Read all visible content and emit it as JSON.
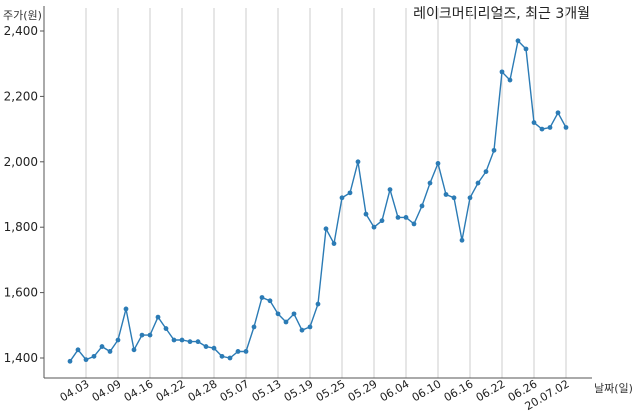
{
  "chart_data": {
    "type": "line",
    "title": "레이크머티리얼즈, 최근 3개월",
    "ylabel": "주가(원)",
    "xlabel": "날짜(일)",
    "ylim": [
      1350,
      2430
    ],
    "yticks": [
      1400,
      1600,
      1800,
      2000,
      2200,
      2400
    ],
    "ytick_labels": [
      "1,400",
      "1,600",
      "1,800",
      "2,000",
      "2,200",
      "2,400"
    ],
    "grid": "vertical",
    "colors": {
      "line": "#2b7bb5",
      "grid": "#cccccc",
      "axis": "#555555"
    },
    "x_labels": [
      {
        "label": "04.03",
        "index": 2
      },
      {
        "label": "04.09",
        "index": 6
      },
      {
        "label": "04.16",
        "index": 10
      },
      {
        "label": "04.22",
        "index": 14
      },
      {
        "label": "04.28",
        "index": 18
      },
      {
        "label": "05.07",
        "index": 22
      },
      {
        "label": "05.13",
        "index": 26
      },
      {
        "label": "05.19",
        "index": 30
      },
      {
        "label": "05.25",
        "index": 34
      },
      {
        "label": "05.29",
        "index": 38
      },
      {
        "label": "06.04",
        "index": 42
      },
      {
        "label": "06.10",
        "index": 46
      },
      {
        "label": "06.16",
        "index": 50
      },
      {
        "label": "06.22",
        "index": 54
      },
      {
        "label": "06.26",
        "index": 58
      },
      {
        "label": "20.07.02",
        "index": 62
      }
    ],
    "series": [
      {
        "values": [
          1390,
          1425,
          1395,
          1405,
          1435,
          1420,
          1455,
          1550,
          1425,
          1470,
          1470,
          1525,
          1490,
          1455,
          1455,
          1450,
          1450,
          1435,
          1430,
          1405,
          1400,
          1420,
          1420,
          1495,
          1585,
          1575,
          1535,
          1510,
          1535,
          1485,
          1495,
          1565,
          1795,
          1750,
          1890,
          1905,
          2000,
          1840,
          1800,
          1820,
          1915,
          1830,
          1830,
          1810,
          1865,
          1935,
          1995,
          1900,
          1890,
          1760,
          1890,
          1935,
          1970,
          2035,
          2275,
          2250,
          2370,
          2345,
          2120,
          2100,
          2105,
          2150,
          2105
        ]
      }
    ]
  }
}
